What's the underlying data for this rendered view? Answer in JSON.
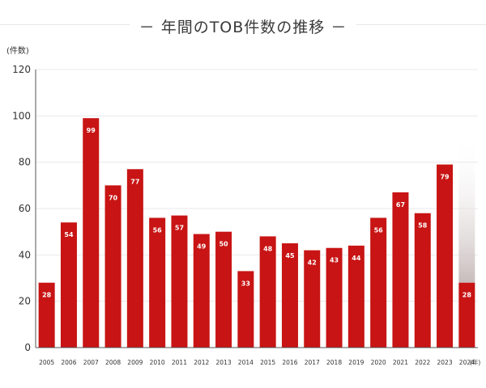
{
  "chart_data": {
    "type": "bar",
    "title": "－ 年間のTOB件数の推移 －",
    "ylabel": "(件数)",
    "xlabel": "(年)",
    "ylim": [
      0,
      120
    ],
    "yticks": [
      0,
      20,
      40,
      60,
      80,
      100,
      120
    ],
    "grid": true,
    "categories": [
      "2005",
      "2006",
      "2007",
      "2008",
      "2009",
      "2010",
      "2011",
      "2012",
      "2013",
      "2014",
      "2015",
      "2016",
      "2017",
      "2018",
      "2019",
      "2020",
      "2021",
      "2022",
      "2023",
      "2024"
    ],
    "values": [
      28,
      54,
      99,
      70,
      77,
      56,
      57,
      49,
      50,
      33,
      48,
      45,
      42,
      43,
      44,
      56,
      67,
      58,
      79,
      28
    ],
    "data_labels": [
      "28",
      "54",
      "99",
      "70",
      "77",
      "56",
      "57",
      "49",
      "50",
      "33",
      "48",
      "45",
      "42",
      "43",
      "44",
      "56",
      "67",
      "58",
      "79",
      "28"
    ],
    "bar_color": "#c81414",
    "label_color": "#ffffff",
    "grid_color": "#e8e8e8",
    "highlight_gradient": [
      "#ffffff",
      "#c8bcbc"
    ]
  }
}
